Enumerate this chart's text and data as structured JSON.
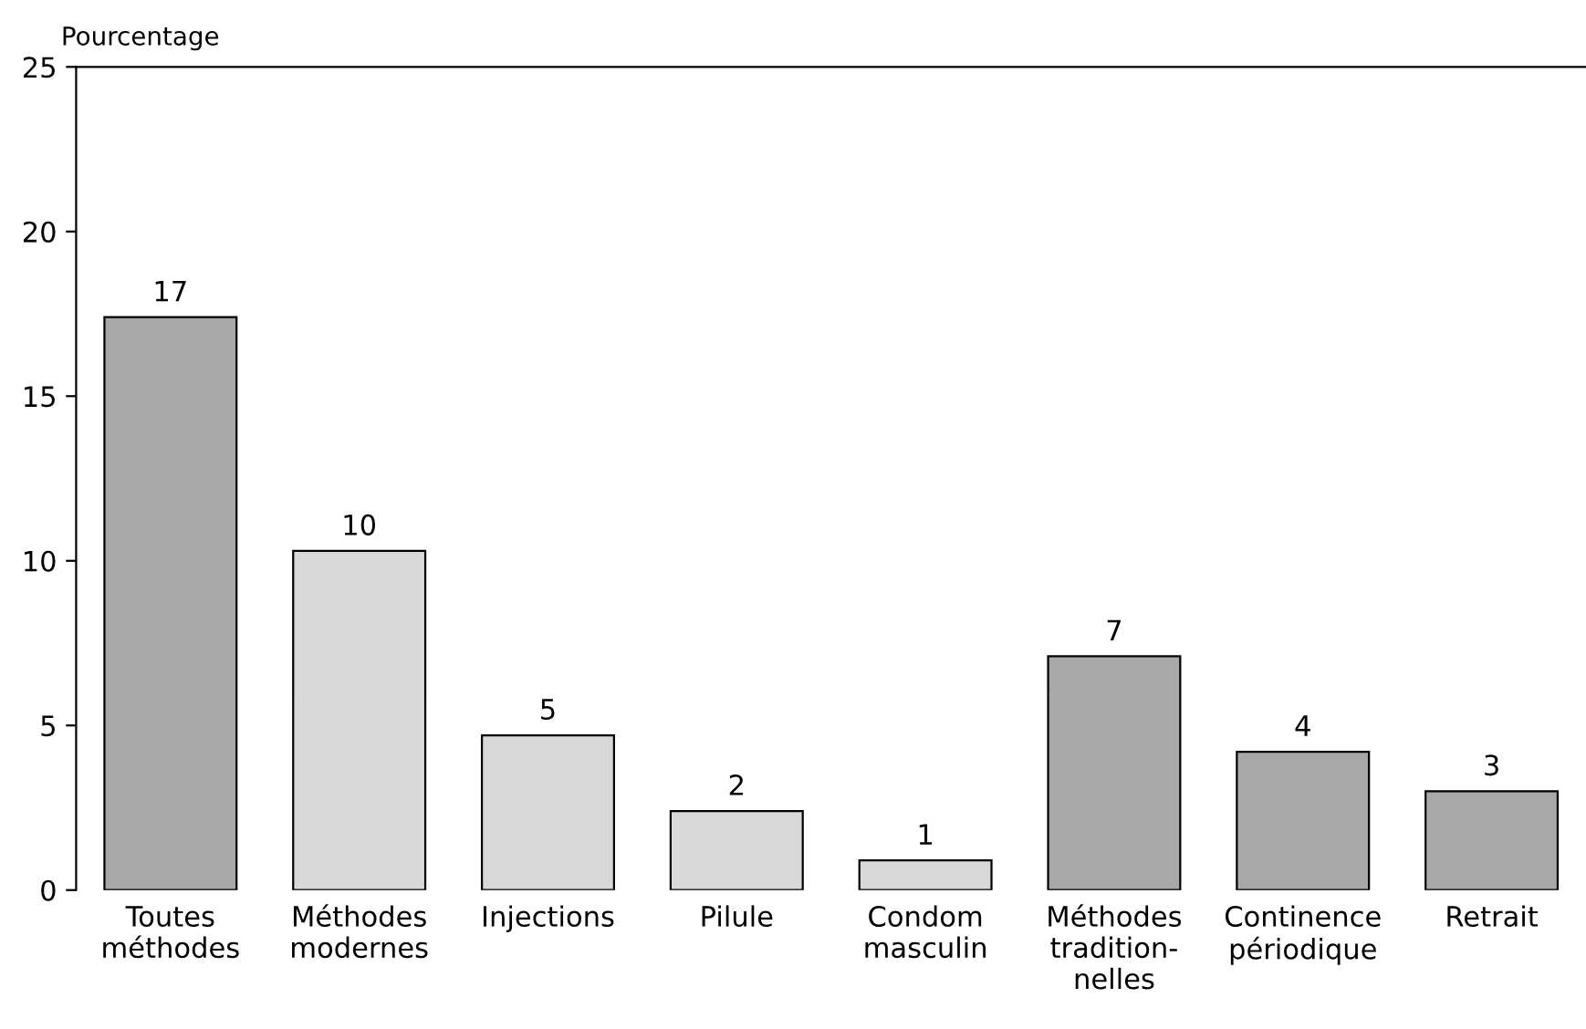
{
  "chart_data": {
    "type": "bar",
    "ylabel": "Pourcentage",
    "categories": [
      "Toutes\nméthodes",
      "Méthodes\nmodernes",
      "Injections",
      "Pilule",
      "Condom\nmasculin",
      "Méthodes\ntradition-\nnelles",
      "Continence\npériodique",
      "Retrait"
    ],
    "values": [
      17.4,
      10.3,
      4.7,
      2.4,
      0.9,
      7.1,
      4.2,
      3.0
    ],
    "value_labels": [
      "17",
      "10",
      "5",
      "2",
      "1",
      "7",
      "4",
      "3"
    ],
    "colors": [
      "#a8a8a8",
      "#d8d8d8",
      "#d8d8d8",
      "#d8d8d8",
      "#d8d8d8",
      "#a8a8a8",
      "#a8a8a8",
      "#a8a8a8"
    ],
    "ylim": [
      0,
      25
    ],
    "yticks": [
      0,
      5,
      10,
      15,
      20,
      25
    ],
    "grid": false,
    "legend": false
  }
}
